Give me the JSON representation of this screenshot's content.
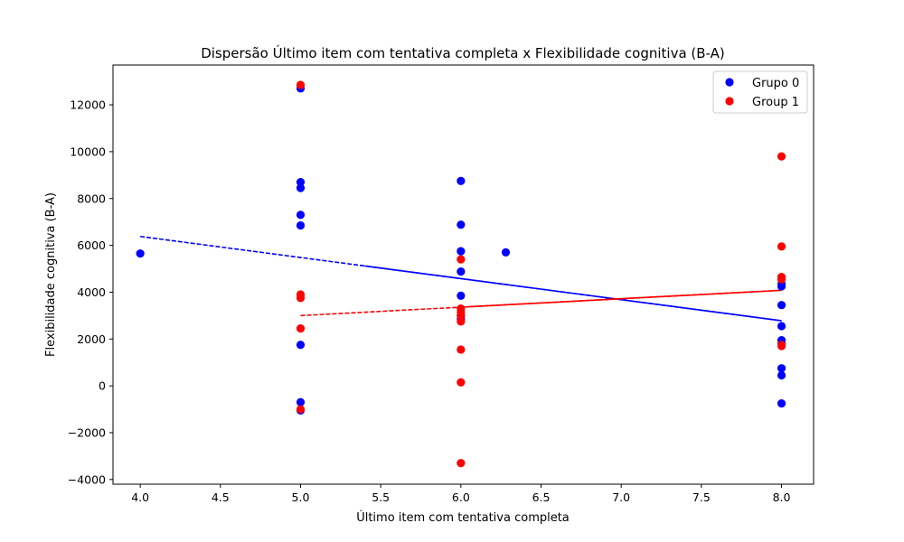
{
  "chart_data": {
    "type": "scatter",
    "title": "Dispersão Último item com tentativa completa x Flexibilidade cognitiva (B-A)",
    "xlabel": "Último item com tentativa completa",
    "ylabel": "Flexibilidade cognitiva (B-A)",
    "xlim": [
      3.83,
      8.2
    ],
    "ylim": [
      -4200,
      13700
    ],
    "x_ticks": [
      4.0,
      4.5,
      5.0,
      5.5,
      6.0,
      6.5,
      7.0,
      7.5,
      8.0
    ],
    "x_tick_labels": [
      "4.0",
      "4.5",
      "5.0",
      "5.5",
      "6.0",
      "6.5",
      "7.0",
      "7.5",
      "8.0"
    ],
    "y_ticks": [
      -4000,
      -2000,
      0,
      2000,
      4000,
      6000,
      8000,
      10000,
      12000
    ],
    "y_tick_labels": [
      "−4000",
      "−2000",
      "0",
      "2000",
      "4000",
      "6000",
      "8000",
      "10000",
      "12000"
    ],
    "grid": false,
    "legend_position": "top-right",
    "series": [
      {
        "name": "Grupo 0",
        "color": "#0000ff",
        "points": [
          [
            4.0,
            5650
          ],
          [
            5.0,
            12700
          ],
          [
            5.0,
            8700
          ],
          [
            5.0,
            8450
          ],
          [
            5.0,
            7300
          ],
          [
            5.0,
            6850
          ],
          [
            5.0,
            1750
          ],
          [
            5.0,
            -700
          ],
          [
            5.0,
            -1050
          ],
          [
            6.0,
            8750
          ],
          [
            6.0,
            6880
          ],
          [
            6.0,
            5750
          ],
          [
            6.0,
            4880
          ],
          [
            6.0,
            3850
          ],
          [
            6.0,
            3000
          ],
          [
            6.0,
            2850
          ],
          [
            6.28,
            5700
          ],
          [
            8.0,
            4350
          ],
          [
            8.0,
            4250
          ],
          [
            8.0,
            3450
          ],
          [
            8.0,
            2550
          ],
          [
            8.0,
            1950
          ],
          [
            8.0,
            1800
          ],
          [
            8.0,
            750
          ],
          [
            8.0,
            450
          ],
          [
            8.0,
            -750
          ]
        ],
        "trend": {
          "x": [
            4.0,
            8.0
          ],
          "y": [
            6380,
            2780
          ]
        }
      },
      {
        "name": "Group 1",
        "color": "#ff0000",
        "points": [
          [
            5.0,
            12850
          ],
          [
            5.0,
            3900
          ],
          [
            5.0,
            3750
          ],
          [
            5.0,
            2450
          ],
          [
            5.0,
            -1000
          ],
          [
            6.0,
            5400
          ],
          [
            6.0,
            3300
          ],
          [
            6.0,
            3150
          ],
          [
            6.0,
            3000
          ],
          [
            6.0,
            2750
          ],
          [
            6.0,
            1550
          ],
          [
            6.0,
            150
          ],
          [
            6.0,
            -3300
          ],
          [
            8.0,
            9800
          ],
          [
            8.0,
            5950
          ],
          [
            8.0,
            4650
          ],
          [
            8.0,
            4550
          ],
          [
            8.0,
            1750
          ],
          [
            8.0,
            1700
          ]
        ],
        "trend": {
          "x": [
            5.0,
            8.0
          ],
          "y": [
            3000,
            4080
          ]
        }
      }
    ]
  }
}
